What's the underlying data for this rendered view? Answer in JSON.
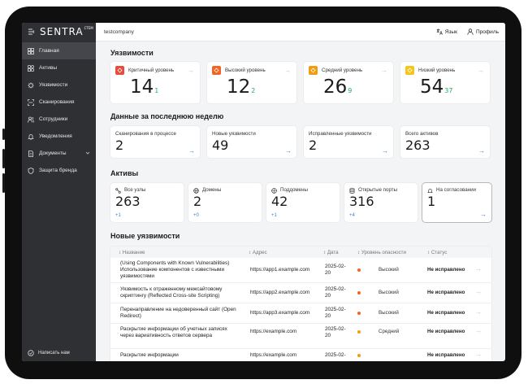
{
  "app": {
    "logo": "SENTRA",
    "logo_sup": "CTEM",
    "company": "testcompany",
    "lang_label": "Язык",
    "profile_label": "Профиль"
  },
  "sidebar": {
    "items": [
      {
        "label": "Главная",
        "icon": "home-icon"
      },
      {
        "label": "Активы",
        "icon": "assets-icon"
      },
      {
        "label": "Уязвимости",
        "icon": "bug-icon"
      },
      {
        "label": "Сканирования",
        "icon": "scan-icon"
      },
      {
        "label": "Сотрудники",
        "icon": "users-icon"
      },
      {
        "label": "Уведомления",
        "icon": "bell-icon"
      },
      {
        "label": "Документы",
        "icon": "document-icon"
      },
      {
        "label": "Защита бренда",
        "icon": "shield-icon"
      }
    ],
    "footer": "Написать нам"
  },
  "vulns": {
    "title": "Уязвимости",
    "cards": [
      {
        "label": "Критичный уровень",
        "value": "14",
        "delta": "1",
        "color": "#e74c3c"
      },
      {
        "label": "Высокий уровень",
        "value": "12",
        "delta": "2",
        "color": "#f26522"
      },
      {
        "label": "Средний уровень",
        "value": "26",
        "delta": "9",
        "color": "#f39c12"
      },
      {
        "label": "Низкий уровень",
        "value": "54",
        "delta": "37",
        "color": "#f5c518"
      }
    ]
  },
  "week": {
    "title": "Данные за последнюю неделю",
    "cards": [
      {
        "label": "Сканирования в процессе",
        "value": "2"
      },
      {
        "label": "Новые уязвимости",
        "value": "49"
      },
      {
        "label": "Исправленные уязвимости",
        "value": "2"
      },
      {
        "label": "Всего активов",
        "value": "263"
      }
    ]
  },
  "assets": {
    "title": "Активы",
    "cards": [
      {
        "label": "Все узлы",
        "value": "263",
        "delta": "+1",
        "icon": "nodes-icon"
      },
      {
        "label": "Домены",
        "value": "2",
        "delta": "+0",
        "icon": "globe-icon"
      },
      {
        "label": "Поддомены",
        "value": "42",
        "delta": "+1",
        "icon": "subdomain-icon"
      },
      {
        "label": "Открытые порты",
        "value": "316",
        "delta": "+4",
        "icon": "database-icon"
      },
      {
        "label": "На согласовании",
        "value": "1",
        "delta": "",
        "icon": "approval-icon"
      }
    ]
  },
  "new_vulns": {
    "title": "Новые уязвимости",
    "columns": [
      "Название",
      "Адрес",
      "Дата",
      "Уровень опасности",
      "Статус"
    ],
    "rows": [
      {
        "name": "(Using Components with Known Vulnerabilities) Использование компонентов с известными уязвимостями",
        "address": "https://app1.example.com",
        "date": "2025-02-20",
        "severity": "Высокий",
        "sev_color": "#f26522",
        "status": "Не исправлено"
      },
      {
        "name": "Уязвимость к отраженному межсайтовому скриптингу (Reflected Cross-site Scripting)",
        "address": "https://app2.example.com",
        "date": "2025-02-20",
        "severity": "Высокий",
        "sev_color": "#f26522",
        "status": "Не исправлено"
      },
      {
        "name": "Перенаправление на недоверенный сайт (Open Redirect)",
        "address": "https://app3.example.com",
        "date": "2025-02-20",
        "severity": "Высокий",
        "sev_color": "#f26522",
        "status": "Не исправлено"
      },
      {
        "name": "Раскрытие информации об учетных записях через вариативность ответов сервера",
        "address": "https://example.com",
        "date": "2025-02-20",
        "severity": "Средний",
        "sev_color": "#f39c12",
        "status": "Не исправлено"
      },
      {
        "name": "Раскрытие информации",
        "address": "https://example.com",
        "date": "2025-02-",
        "severity": "",
        "sev_color": "#f39c12",
        "status": "Не исправлено"
      }
    ]
  }
}
